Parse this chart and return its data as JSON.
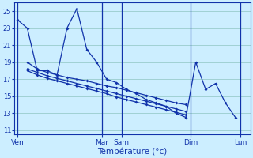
{
  "background_color": "#cceeff",
  "grid_color": "#99cccc",
  "line_color": "#1133aa",
  "xlabel": "Température (°c)",
  "ylim": [
    10.5,
    26.0
  ],
  "xlim": [
    -0.3,
    23.5
  ],
  "yticks": [
    11,
    13,
    15,
    17,
    19,
    21,
    23,
    25
  ],
  "day_labels": [
    "Ven",
    "Mar",
    "Sam",
    "Dim",
    "Lun"
  ],
  "day_x": [
    0,
    8.5,
    10.5,
    17.5,
    22.5
  ],
  "vline_x": [
    0,
    8.5,
    10.5,
    17.5,
    22.5
  ],
  "series": [
    {
      "x": [
        0,
        1,
        2,
        3,
        4,
        5,
        6,
        7,
        8,
        9,
        10,
        11,
        12,
        13,
        14,
        15,
        16,
        17,
        18,
        19,
        20,
        21,
        22
      ],
      "y": [
        24.0,
        23.0,
        18.0,
        18.0,
        17.5,
        23.0,
        25.3,
        20.5,
        19.0,
        17.0,
        16.6,
        15.8,
        15.3,
        14.6,
        14.2,
        13.8,
        13.0,
        12.5,
        19.0,
        15.8,
        16.5,
        14.2,
        12.5
      ]
    },
    {
      "x": [
        1,
        2,
        3,
        4,
        5,
        6,
        7,
        8,
        9,
        10,
        11,
        12,
        13,
        14,
        15,
        16,
        17
      ],
      "y": [
        19.0,
        18.2,
        17.8,
        17.5,
        17.2,
        17.0,
        16.8,
        16.5,
        16.2,
        16.0,
        15.7,
        15.4,
        15.1,
        14.8,
        14.5,
        14.2,
        14.0
      ]
    },
    {
      "x": [
        1,
        2,
        3,
        4,
        5,
        6,
        7,
        8,
        9,
        10,
        11,
        12,
        13,
        14,
        15,
        16,
        17
      ],
      "y": [
        18.2,
        17.8,
        17.4,
        17.1,
        16.8,
        16.5,
        16.2,
        15.9,
        15.6,
        15.3,
        15.0,
        14.7,
        14.4,
        14.1,
        13.8,
        13.5,
        13.2
      ]
    },
    {
      "x": [
        1,
        2,
        3,
        4,
        5,
        6,
        7,
        8,
        9,
        10,
        11,
        12,
        13,
        14,
        15,
        16,
        17
      ],
      "y": [
        18.0,
        17.5,
        17.1,
        16.8,
        16.5,
        16.2,
        15.9,
        15.6,
        15.3,
        14.9,
        14.6,
        14.3,
        14.0,
        13.7,
        13.4,
        13.1,
        12.8
      ]
    }
  ]
}
